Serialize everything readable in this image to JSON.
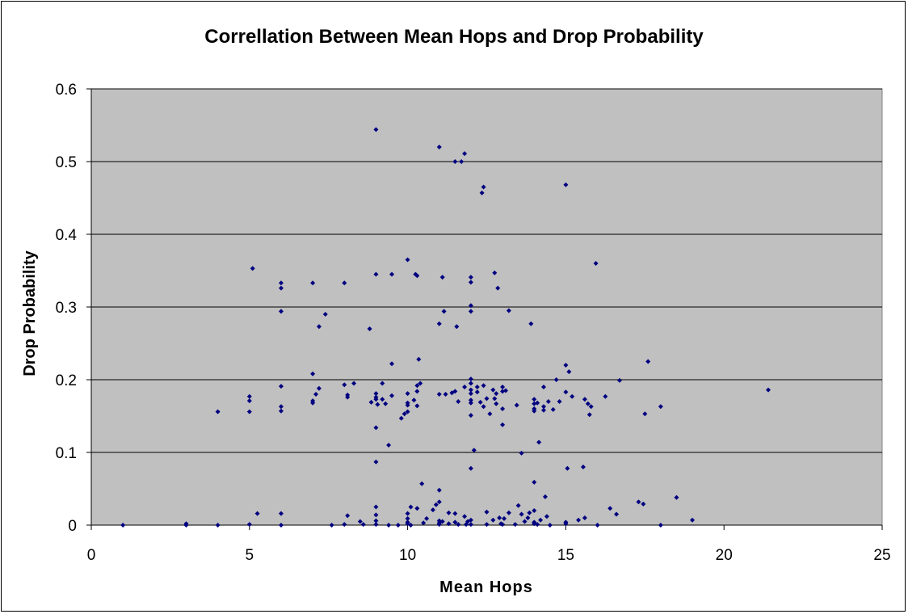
{
  "chart_data": {
    "type": "scatter",
    "title": "Correllation Between Mean Hops and Drop Probability",
    "xlabel": "Mean Hops",
    "ylabel": "Drop Probability",
    "xlim": [
      0,
      25
    ],
    "ylim": [
      0,
      0.6
    ],
    "x_ticks": [
      "0",
      "5",
      "10",
      "15",
      "20",
      "25"
    ],
    "y_ticks": [
      "0",
      "0.1",
      "0.2",
      "0.3",
      "0.4",
      "0.5",
      "0.6"
    ],
    "x_tick_values": [
      0,
      5,
      10,
      15,
      20,
      25
    ],
    "y_tick_values": [
      0,
      0.1,
      0.2,
      0.3,
      0.4,
      0.5,
      0.6
    ],
    "grid": "horizontal major gridlines",
    "legend": "none",
    "plot_background": "#c0c0c0",
    "marker_color": "#000080",
    "marker": "diamond",
    "points": [
      [
        1,
        0
      ],
      [
        3,
        0.002
      ],
      [
        3,
        0
      ],
      [
        4,
        0
      ],
      [
        4,
        0.156
      ],
      [
        5,
        0.001
      ],
      [
        5,
        0.156
      ],
      [
        5,
        0.171
      ],
      [
        5,
        0.177
      ],
      [
        5.1,
        0.353
      ],
      [
        5.25,
        0.016
      ],
      [
        6,
        0.333
      ],
      [
        6,
        0.326
      ],
      [
        6,
        0.294
      ],
      [
        6,
        0.191
      ],
      [
        6,
        0.163
      ],
      [
        6,
        0.157
      ],
      [
        6,
        0.016
      ],
      [
        6,
        0
      ],
      [
        7,
        0.333
      ],
      [
        7,
        0.208
      ],
      [
        7,
        0.171
      ],
      [
        7,
        0.168
      ],
      [
        7.1,
        0.18
      ],
      [
        7.2,
        0.188
      ],
      [
        7.2,
        0.273
      ],
      [
        7.4,
        0.29
      ],
      [
        7.6,
        0
      ],
      [
        8,
        0.333
      ],
      [
        8,
        0.193
      ],
      [
        8,
        0.001
      ],
      [
        8.1,
        0.013
      ],
      [
        8.1,
        0.176
      ],
      [
        8.1,
        0.179
      ],
      [
        8.3,
        0.195
      ],
      [
        8.5,
        0.005
      ],
      [
        8.6,
        0.001
      ],
      [
        8.8,
        0.27
      ],
      [
        8.85,
        0.169
      ],
      [
        9,
        0.544
      ],
      [
        9,
        0.345
      ],
      [
        9,
        0.181
      ],
      [
        9,
        0.176
      ],
      [
        9,
        0.173
      ],
      [
        9.05,
        0.166
      ],
      [
        9,
        0.134
      ],
      [
        9,
        0.087
      ],
      [
        9,
        0.025
      ],
      [
        9,
        0.014
      ],
      [
        9,
        0.006
      ],
      [
        9,
        0.001
      ],
      [
        9.2,
        0.195
      ],
      [
        9.2,
        0.173
      ],
      [
        9.3,
        0.167
      ],
      [
        9.4,
        0.11
      ],
      [
        9.4,
        0
      ],
      [
        9.5,
        0.222
      ],
      [
        9.5,
        0.345
      ],
      [
        9.5,
        0.178
      ],
      [
        9.7,
        0
      ],
      [
        9.8,
        0.147
      ],
      [
        9.9,
        0.153
      ],
      [
        10,
        0.365
      ],
      [
        10,
        0.181
      ],
      [
        10,
        0.168
      ],
      [
        10,
        0.165
      ],
      [
        10,
        0.156
      ],
      [
        10,
        0.016
      ],
      [
        10,
        0.009
      ],
      [
        10,
        0.004
      ],
      [
        10,
        0.002
      ],
      [
        10.1,
        0.025
      ],
      [
        10.1,
        0
      ],
      [
        10.2,
        0.172
      ],
      [
        10.25,
        0.345
      ],
      [
        10.3,
        0.343
      ],
      [
        10.3,
        0.192
      ],
      [
        10.3,
        0.184
      ],
      [
        10.3,
        0.164
      ],
      [
        10.3,
        0.023
      ],
      [
        10.35,
        0.228
      ],
      [
        10.4,
        0.195
      ],
      [
        10.45,
        0.057
      ],
      [
        10.5,
        0.003
      ],
      [
        10.6,
        0.009
      ],
      [
        10.8,
        0.021
      ],
      [
        10.9,
        0.028
      ],
      [
        11,
        0.52
      ],
      [
        11,
        0.277
      ],
      [
        11,
        0.18
      ],
      [
        11,
        0.048
      ],
      [
        11,
        0.032
      ],
      [
        11,
        0.006
      ],
      [
        11,
        0.003
      ],
      [
        11,
        0.001
      ],
      [
        11.1,
        0.005
      ],
      [
        11.1,
        0.341
      ],
      [
        11.15,
        0.294
      ],
      [
        11.2,
        0.18
      ],
      [
        11.3,
        0.017
      ],
      [
        11.3,
        0.002
      ],
      [
        11.4,
        0.182
      ],
      [
        11.5,
        0.5
      ],
      [
        11.5,
        0.184
      ],
      [
        11.55,
        0.273
      ],
      [
        11.5,
        0.016
      ],
      [
        11.5,
        0.004
      ],
      [
        11.6,
        0.17
      ],
      [
        11.6,
        0.001
      ],
      [
        11.7,
        0.5
      ],
      [
        11.8,
        0.19
      ],
      [
        11.8,
        0.511
      ],
      [
        11.8,
        0.012
      ],
      [
        11.85,
        0.001
      ],
      [
        11.9,
        0.005
      ],
      [
        12,
        0.341
      ],
      [
        12,
        0.334
      ],
      [
        12,
        0.302
      ],
      [
        12,
        0.294
      ],
      [
        12,
        0.201
      ],
      [
        12,
        0.195
      ],
      [
        12,
        0.186
      ],
      [
        12,
        0.181
      ],
      [
        12,
        0.172
      ],
      [
        12,
        0.168
      ],
      [
        12,
        0.151
      ],
      [
        12,
        0.078
      ],
      [
        12,
        0.007
      ],
      [
        12,
        0.001
      ],
      [
        12.1,
        0.103
      ],
      [
        12.2,
        0.183
      ],
      [
        12.2,
        0.19
      ],
      [
        12.3,
        0.169
      ],
      [
        12.35,
        0.457
      ],
      [
        12.4,
        0.465
      ],
      [
        12.4,
        0.192
      ],
      [
        12.4,
        0.163
      ],
      [
        12.5,
        0.174
      ],
      [
        12.5,
        0.018
      ],
      [
        12.5,
        0.001
      ],
      [
        12.6,
        0.153
      ],
      [
        12.7,
        0.007
      ],
      [
        12.7,
        0.186
      ],
      [
        12.75,
        0.347
      ],
      [
        12.75,
        0.174
      ],
      [
        12.8,
        0.167
      ],
      [
        12.8,
        0.181
      ],
      [
        12.85,
        0.326
      ],
      [
        12.9,
        0.01
      ],
      [
        12.95,
        0.002
      ],
      [
        13,
        0.19
      ],
      [
        13,
        0.184
      ],
      [
        13,
        0.16
      ],
      [
        13,
        0.138
      ],
      [
        13,
        0.001
      ],
      [
        13.05,
        0.009
      ],
      [
        13.1,
        0.185
      ],
      [
        13.2,
        0.017
      ],
      [
        13.2,
        0.295
      ],
      [
        13.4,
        0.001
      ],
      [
        13.45,
        0.165
      ],
      [
        13.5,
        0.027
      ],
      [
        13.6,
        0.015
      ],
      [
        13.6,
        0.099
      ],
      [
        13.7,
        0.005
      ],
      [
        13.8,
        0.01
      ],
      [
        13.85,
        0.017
      ],
      [
        13.9,
        0.277
      ],
      [
        14,
        0.173
      ],
      [
        14,
        0.167
      ],
      [
        14,
        0.16
      ],
      [
        14,
        0.157
      ],
      [
        14,
        0.059
      ],
      [
        14,
        0.02
      ],
      [
        14,
        0.004
      ],
      [
        14,
        0.002
      ],
      [
        14.1,
        0.168
      ],
      [
        14.1,
        0.001
      ],
      [
        14.15,
        0.114
      ],
      [
        14.2,
        0.007
      ],
      [
        14.3,
        0.163
      ],
      [
        14.3,
        0.158
      ],
      [
        14.3,
        0.19
      ],
      [
        14.35,
        0.039
      ],
      [
        14.4,
        0.012
      ],
      [
        14.45,
        0.17
      ],
      [
        14.5,
        0
      ],
      [
        14.6,
        0.159
      ],
      [
        14.7,
        0.2
      ],
      [
        14.8,
        0.17
      ],
      [
        15,
        0.468
      ],
      [
        15,
        0.22
      ],
      [
        15,
        0.183
      ],
      [
        15.1,
        0.211
      ],
      [
        15,
        0.004
      ],
      [
        15,
        0.002
      ],
      [
        15.05,
        0.078
      ],
      [
        15.2,
        0.177
      ],
      [
        15.4,
        0.007
      ],
      [
        15.55,
        0.08
      ],
      [
        15.6,
        0.173
      ],
      [
        15.7,
        0.167
      ],
      [
        15.75,
        0.152
      ],
      [
        15.6,
        0.01
      ],
      [
        15.8,
        0.163
      ],
      [
        15.95,
        0.36
      ],
      [
        16,
        0
      ],
      [
        16.25,
        0.177
      ],
      [
        16.4,
        0.023
      ],
      [
        16.6,
        0.015
      ],
      [
        16.7,
        0.199
      ],
      [
        17.3,
        0.032
      ],
      [
        17.45,
        0.029
      ],
      [
        17.5,
        0.153
      ],
      [
        17.6,
        0.225
      ],
      [
        18,
        0.163
      ],
      [
        18,
        0
      ],
      [
        18.5,
        0.038
      ],
      [
        19,
        0.007
      ],
      [
        21.4,
        0.186
      ]
    ]
  }
}
